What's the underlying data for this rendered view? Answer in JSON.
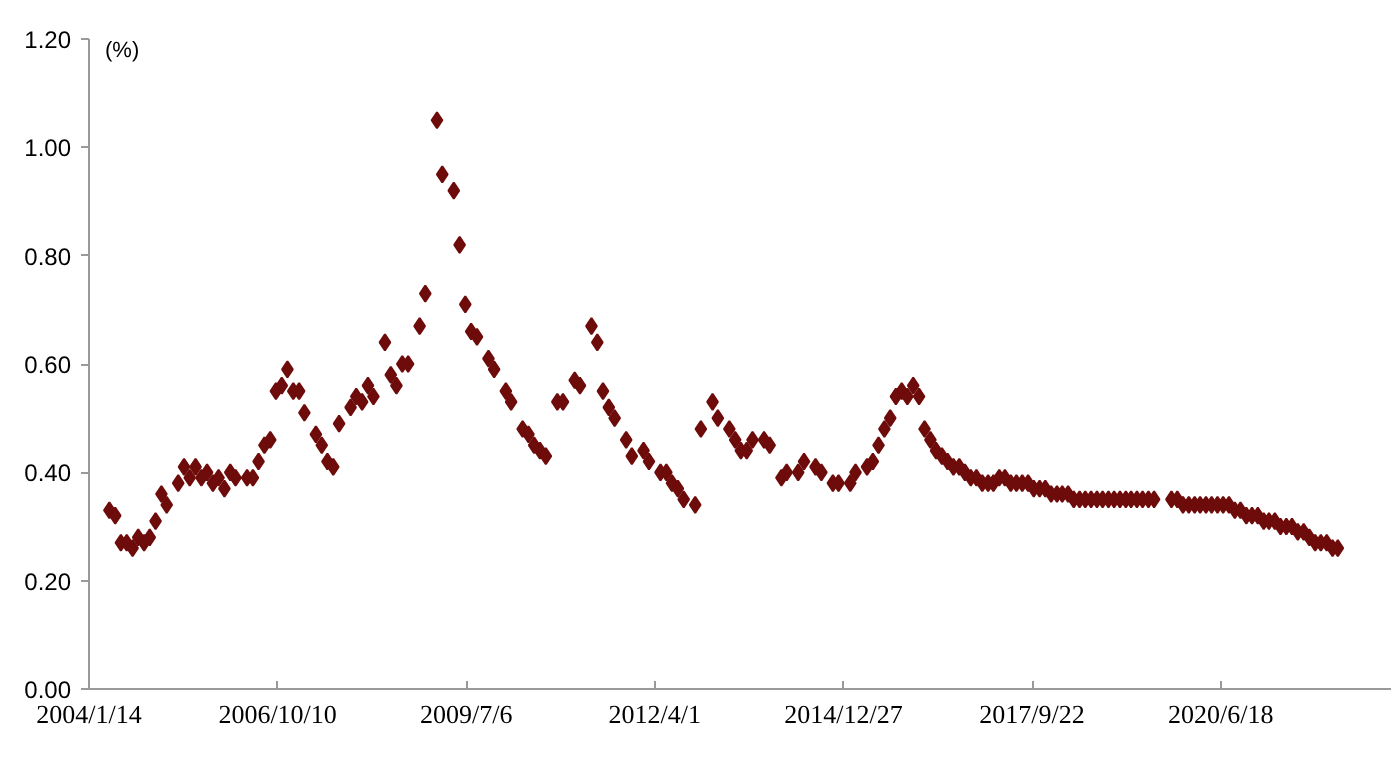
{
  "chart_data": {
    "type": "scatter",
    "ylabel": "(%)",
    "marker": "diamond",
    "color": "#6e0b0b",
    "grid": false,
    "x": [
      "2004-05",
      "2004-06",
      "2004-07",
      "2004-08",
      "2004-09",
      "2004-10",
      "2004-11",
      "2004-12",
      "2005-01",
      "2005-02",
      "2005-03",
      "2005-05",
      "2005-06",
      "2005-07",
      "2005-08",
      "2005-09",
      "2005-10",
      "2005-11",
      "2005-12",
      "2006-01",
      "2006-02",
      "2006-03",
      "2006-05",
      "2006-06",
      "2006-07",
      "2006-08",
      "2006-09",
      "2006-10",
      "2006-11",
      "2006-12",
      "2007-01",
      "2007-02",
      "2007-03",
      "2007-05",
      "2007-06",
      "2007-07",
      "2007-08",
      "2007-09",
      "2007-11",
      "2007-12",
      "2008-01",
      "2008-02",
      "2008-03",
      "2008-05",
      "2008-06",
      "2008-07",
      "2008-08",
      "2008-09",
      "2008-11",
      "2008-12",
      "2009-02",
      "2009-03",
      "2009-05",
      "2009-06",
      "2009-07",
      "2009-08",
      "2009-09",
      "2009-11",
      "2009-12",
      "2010-02",
      "2010-03",
      "2010-05",
      "2010-06",
      "2010-07",
      "2010-08",
      "2010-09",
      "2010-11",
      "2010-12",
      "2011-02",
      "2011-03",
      "2011-05",
      "2011-06",
      "2011-07",
      "2011-08",
      "2011-09",
      "2011-11",
      "2011-12",
      "2012-02",
      "2012-03",
      "2012-05",
      "2012-06",
      "2012-07",
      "2012-08",
      "2012-09",
      "2012-11",
      "2012-12",
      "2013-02",
      "2013-03",
      "2013-05",
      "2013-06",
      "2013-07",
      "2013-08",
      "2013-09",
      "2013-11",
      "2013-12",
      "2014-02",
      "2014-03",
      "2014-05",
      "2014-06",
      "2014-08",
      "2014-09",
      "2014-11",
      "2014-12",
      "2015-02",
      "2015-03",
      "2015-05",
      "2015-06",
      "2015-07",
      "2015-08",
      "2015-09",
      "2015-10",
      "2015-11",
      "2015-12",
      "2016-01",
      "2016-02",
      "2016-03",
      "2016-04",
      "2016-05",
      "2016-06",
      "2016-07",
      "2016-08",
      "2016-09",
      "2016-10",
      "2016-11",
      "2016-12",
      "2017-01",
      "2017-02",
      "2017-03",
      "2017-04",
      "2017-05",
      "2017-06",
      "2017-07",
      "2017-08",
      "2017-09",
      "2017-10",
      "2017-11",
      "2017-12",
      "2018-01",
      "2018-02",
      "2018-03",
      "2018-04",
      "2018-05",
      "2018-06",
      "2018-07",
      "2018-08",
      "2018-09",
      "2018-10",
      "2018-11",
      "2018-12",
      "2019-01",
      "2019-02",
      "2019-03",
      "2019-04",
      "2019-05",
      "2019-06",
      "2019-07",
      "2019-10",
      "2019-11",
      "2019-12",
      "2020-01",
      "2020-02",
      "2020-03",
      "2020-04",
      "2020-05",
      "2020-06",
      "2020-07",
      "2020-08",
      "2020-09",
      "2020-10",
      "2020-11",
      "2020-12",
      "2021-01",
      "2021-02",
      "2021-03",
      "2021-04",
      "2021-05",
      "2021-06",
      "2021-07",
      "2021-08",
      "2021-09",
      "2021-10",
      "2021-11",
      "2021-12",
      "2022-01",
      "2022-02",
      "2022-03"
    ],
    "values": [
      0.33,
      0.32,
      0.27,
      0.27,
      0.26,
      0.28,
      0.27,
      0.28,
      0.31,
      0.36,
      0.34,
      0.38,
      0.41,
      0.39,
      0.41,
      0.39,
      0.4,
      0.38,
      0.39,
      0.37,
      0.4,
      0.39,
      0.39,
      0.39,
      0.42,
      0.45,
      0.46,
      0.55,
      0.56,
      0.59,
      0.55,
      0.55,
      0.51,
      0.47,
      0.45,
      0.42,
      0.41,
      0.49,
      0.52,
      0.54,
      0.53,
      0.56,
      0.54,
      0.64,
      0.58,
      0.56,
      0.6,
      0.6,
      0.67,
      0.73,
      1.05,
      0.95,
      0.92,
      0.82,
      0.71,
      0.66,
      0.65,
      0.61,
      0.59,
      0.55,
      0.53,
      0.48,
      0.47,
      0.45,
      0.44,
      0.43,
      0.53,
      0.53,
      0.57,
      0.56,
      0.67,
      0.64,
      0.55,
      0.52,
      0.5,
      0.46,
      0.43,
      0.44,
      0.42,
      0.4,
      0.4,
      0.38,
      0.37,
      0.35,
      0.34,
      0.48,
      0.53,
      0.5,
      0.48,
      0.46,
      0.44,
      0.44,
      0.46,
      0.46,
      0.45,
      0.39,
      0.4,
      0.4,
      0.42,
      0.41,
      0.4,
      0.38,
      0.38,
      0.38,
      0.4,
      0.41,
      0.42,
      0.45,
      0.48,
      0.5,
      0.54,
      0.55,
      0.54,
      0.56,
      0.54,
      0.48,
      0.46,
      0.44,
      0.43,
      0.42,
      0.41,
      0.41,
      0.4,
      0.39,
      0.39,
      0.38,
      0.38,
      0.38,
      0.39,
      0.39,
      0.38,
      0.38,
      0.38,
      0.38,
      0.37,
      0.37,
      0.37,
      0.36,
      0.36,
      0.36,
      0.36,
      0.35,
      0.35,
      0.35,
      0.35,
      0.35,
      0.35,
      0.35,
      0.35,
      0.35,
      0.35,
      0.35,
      0.35,
      0.35,
      0.35,
      0.35,
      0.35,
      0.35,
      0.34,
      0.34,
      0.34,
      0.34,
      0.34,
      0.34,
      0.34,
      0.34,
      0.34,
      0.33,
      0.33,
      0.32,
      0.32,
      0.32,
      0.31,
      0.31,
      0.31,
      0.3,
      0.3,
      0.3,
      0.29,
      0.29,
      0.28,
      0.27,
      0.27,
      0.27,
      0.26,
      0.26
    ],
    "xlim": [
      "2004-01-14",
      "2022-12-08"
    ],
    "xticks": [
      {
        "value": "2004-01-14",
        "label": "2004/1/14"
      },
      {
        "value": "2006-10-10",
        "label": "2006/10/10"
      },
      {
        "value": "2009-07-06",
        "label": "2009/7/6"
      },
      {
        "value": "2012-04-01",
        "label": "2012/4/1"
      },
      {
        "value": "2014-12-27",
        "label": "2014/12/27"
      },
      {
        "value": "2017-09-22",
        "label": "2017/9/22"
      },
      {
        "value": "2020-06-18",
        "label": "2020/6/18"
      }
    ],
    "ylim": [
      0,
      1.2
    ],
    "yticks": [
      {
        "value": 0,
        "label": "0.00"
      },
      {
        "value": 0.2,
        "label": "0.20"
      },
      {
        "value": 0.4,
        "label": "0.40"
      },
      {
        "value": 0.6,
        "label": "0.60"
      },
      {
        "value": 0.8,
        "label": "0.80"
      },
      {
        "value": 1.0,
        "label": "1.00"
      },
      {
        "value": 1.2,
        "label": "1.20"
      }
    ]
  }
}
